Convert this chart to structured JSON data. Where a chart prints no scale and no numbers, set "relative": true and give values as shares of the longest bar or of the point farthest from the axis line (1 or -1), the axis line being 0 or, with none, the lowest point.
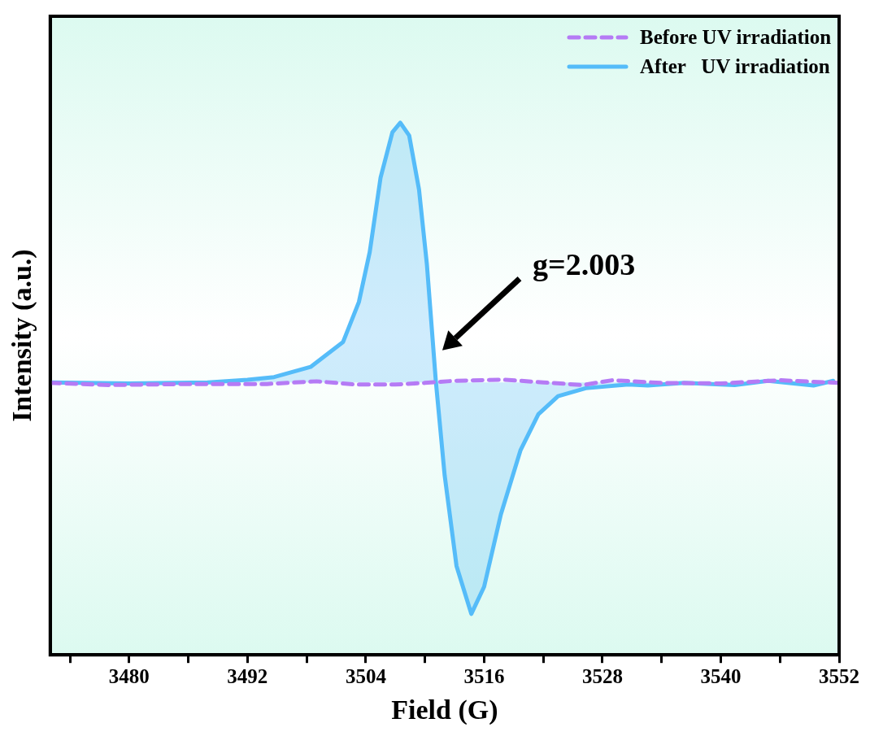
{
  "chart_data": {
    "type": "line",
    "xlabel": "Field (G)",
    "ylabel": "Intensity (a.u.)",
    "relative": true,
    "xlim": [
      3472,
      3552
    ],
    "xticks": [
      {
        "value": 3474,
        "label": null
      },
      3480,
      {
        "value": 3486,
        "label": null
      },
      3492,
      {
        "value": 3498,
        "label": null
      },
      3504,
      {
        "value": 3510,
        "label": null
      },
      3516,
      {
        "value": 3522,
        "label": null
      },
      3528,
      {
        "value": 3534,
        "label": null
      },
      3540,
      {
        "value": 3546,
        "label": null
      },
      3552
    ],
    "tick_labels": "x",
    "legend": "top right",
    "annotations": [
      "g=2.003"
    ],
    "series": [
      {
        "name": "Before UV irradiation",
        "color": "#b57bf5",
        "line_style": "dashed",
        "x": [
          3472,
          3478,
          3486,
          3494,
          3499,
          3503,
          3507,
          3510,
          3513,
          3518,
          3522,
          3526,
          3529,
          3534,
          3540,
          3546,
          3552
        ],
        "values": [
          0.511,
          0.507,
          0.509,
          0.509,
          0.514,
          0.508,
          0.508,
          0.511,
          0.515,
          0.517,
          0.512,
          0.507,
          0.516,
          0.511,
          0.51,
          0.516,
          0.511
        ]
      },
      {
        "name": "After   UV irradiation",
        "type": "area",
        "color": "#55bcf9",
        "line_style": "solid",
        "x": [
          3472,
          3480,
          3488,
          3492,
          3494.7,
          3498.4,
          3501.7,
          3503.3,
          3504.4,
          3505.5,
          3506.7,
          3507.5,
          3508.4,
          3509.4,
          3510.2,
          3511.1,
          3512,
          3513.2,
          3514.7,
          3516,
          3517.7,
          3519.7,
          3521.5,
          3523.5,
          3526.3,
          3530.6,
          3532.6,
          3536.3,
          3541.4,
          3544.8,
          3549.4,
          3551.4
        ],
        "values": [
          0.512,
          0.51,
          0.512,
          0.517,
          0.522,
          0.541,
          0.588,
          0.663,
          0.757,
          0.897,
          0.982,
          1,
          0.976,
          0.874,
          0.733,
          0.515,
          0.337,
          0.167,
          0.077,
          0.128,
          0.264,
          0.385,
          0.452,
          0.486,
          0.501,
          0.508,
          0.506,
          0.511,
          0.507,
          0.515,
          0.506,
          0.515
        ]
      }
    ]
  }
}
